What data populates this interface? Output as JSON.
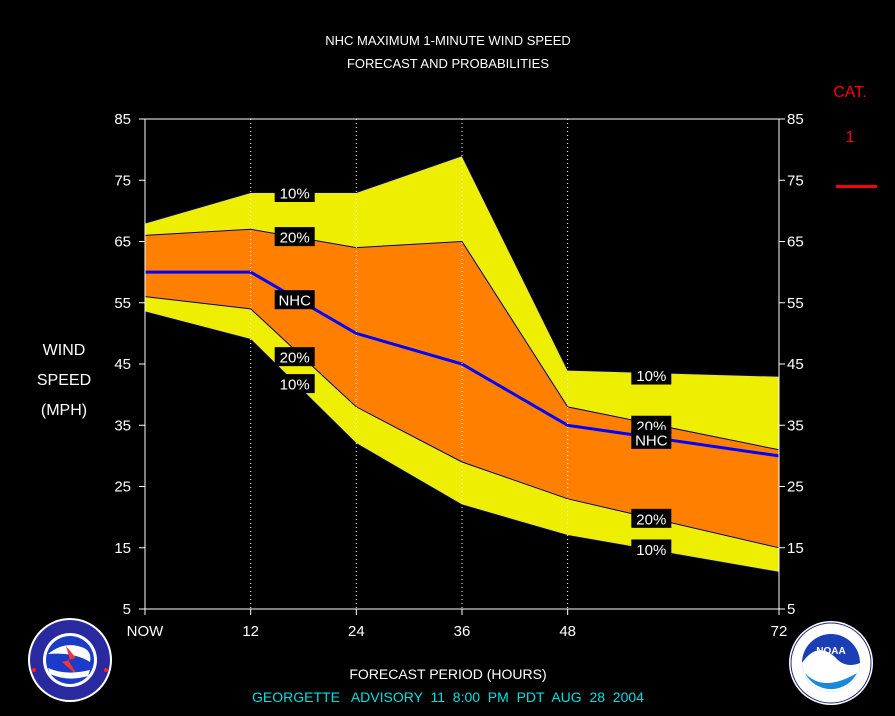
{
  "chart_data": {
    "type": "area",
    "title_line1": "NHC MAXIMUM 1-MINUTE WIND SPEED",
    "title_line2": "FORECAST AND PROBABILITIES",
    "ylabel_lines": [
      "WIND",
      "SPEED",
      "(MPH)"
    ],
    "xlabel": "FORECAST PERIOD (HOURS)",
    "footer": "GEORGETTE   ADVISORY  11  8:00  PM  PDT  AUG  28  2004",
    "ylim": [
      5,
      85
    ],
    "xlim": [
      0,
      72
    ],
    "y_ticks": [
      5,
      15,
      25,
      35,
      45,
      55,
      65,
      75,
      85
    ],
    "x_ticks": [
      {
        "x": 0,
        "label": "NOW"
      },
      {
        "x": 12,
        "label": "12"
      },
      {
        "x": 24,
        "label": "24"
      },
      {
        "x": 36,
        "label": "36"
      },
      {
        "x": 48,
        "label": "48"
      },
      {
        "x": 72,
        "label": "72"
      }
    ],
    "x_gridlines": [
      12,
      24,
      36,
      48
    ],
    "x": [
      0,
      12,
      24,
      36,
      48,
      72
    ],
    "bands": {
      "upper_10": [
        68,
        73,
        73,
        79,
        44,
        43
      ],
      "upper_20": [
        66,
        67,
        64,
        65,
        38,
        31
      ],
      "nhc": [
        60,
        60,
        50,
        45,
        35,
        30
      ],
      "lower_20": [
        56,
        54,
        38,
        29,
        23,
        15
      ],
      "lower_10": [
        53.5,
        49,
        32,
        22,
        17,
        11
      ]
    },
    "colors": {
      "outer_band": "#eeee00",
      "inner_band": "#ff8000",
      "nhc_line": "#0000ff",
      "edge_line": "#000080",
      "category": "#ff0000",
      "footer": "#00e0e0",
      "background": "#000000",
      "plot_border": "#ffffff"
    },
    "band_labels": [
      {
        "text": "10%",
        "x": 17,
        "y": 73
      },
      {
        "text": "20%",
        "x": 17,
        "y": 65.8
      },
      {
        "text": "NHC",
        "x": 17,
        "y": 55.5
      },
      {
        "text": "20%",
        "x": 17,
        "y": 46.2
      },
      {
        "text": "10%",
        "x": 17,
        "y": 41.8
      },
      {
        "text": "10%",
        "x": 57.5,
        "y": 43.2
      },
      {
        "text": "20%",
        "x": 57.5,
        "y": 35
      },
      {
        "text": "NHC",
        "x": 57.5,
        "y": 32.7
      },
      {
        "text": "20%",
        "x": 57.5,
        "y": 19.8
      },
      {
        "text": "10%",
        "x": 57.5,
        "y": 14.8
      }
    ],
    "category": {
      "title": "CAT.",
      "number": "1",
      "threshold_mph": 74
    }
  },
  "logos": {
    "left": {
      "name": "national-weather-service-logo",
      "text": "NATIONAL WEATHER SERVICE"
    },
    "right": {
      "name": "noaa-logo",
      "text": "NOAA"
    }
  }
}
